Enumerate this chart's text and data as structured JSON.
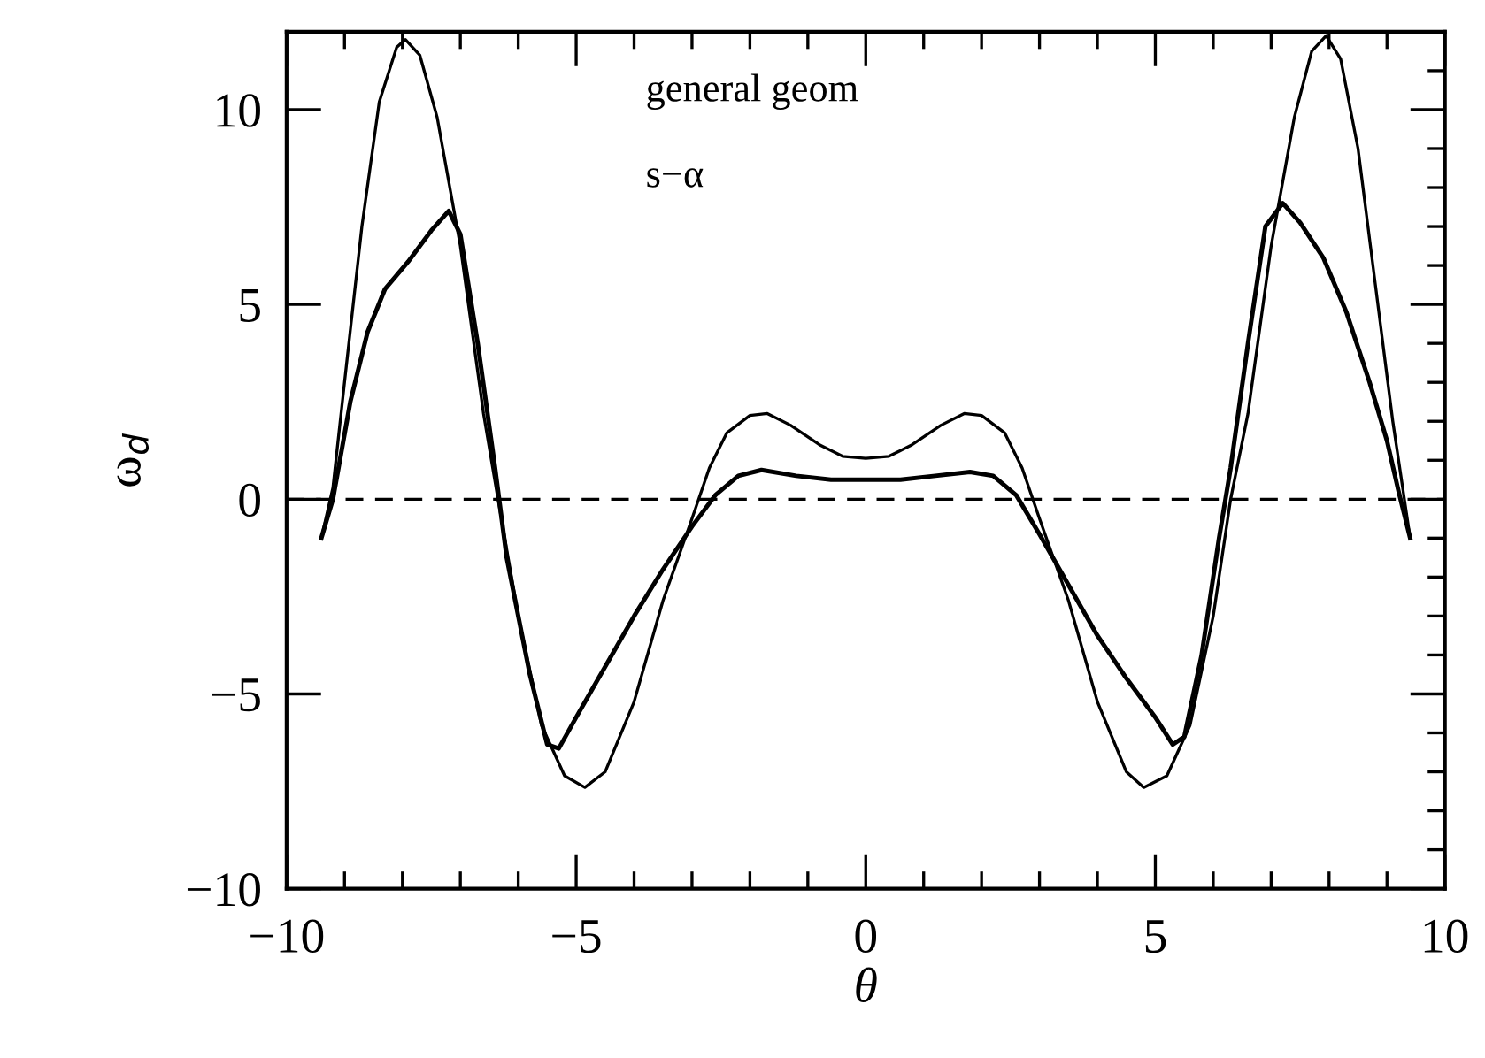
{
  "chart_data": {
    "type": "line",
    "xlabel": "θ",
    "ylabel": "ω$_{d}$",
    "xlim": [
      -10,
      10
    ],
    "ylim": [
      -10,
      12
    ],
    "xticks": [
      {
        "value": -10,
        "label": "−10"
      },
      {
        "value": -5,
        "label": "−5"
      },
      0,
      5,
      10
    ],
    "yticks": [
      {
        "value": -10,
        "label": "−10"
      },
      {
        "value": -5,
        "label": "−5"
      },
      0,
      5,
      10
    ],
    "grid": false,
    "legend": false,
    "marker": "none",
    "line_style": "solid",
    "annotations": [
      "general geom",
      "s−α"
    ],
    "ref_lines": [
      {
        "axis": "y",
        "value": 0,
        "color": "#000000",
        "line_style": "dashed"
      }
    ],
    "series": [
      {
        "color": "#000000",
        "x": [
          -9.4,
          -9.2,
          -9.0,
          -8.7,
          -8.4,
          -8.1,
          -7.95,
          -7.7,
          -7.4,
          -7.0,
          -6.6,
          -6.35,
          -6.0,
          -5.6,
          -5.2,
          -4.85,
          -4.5,
          -4.0,
          -3.5,
          -3.0,
          -2.7,
          -2.4,
          -2.0,
          -1.7,
          -1.3,
          -0.8,
          -0.4,
          0,
          0.4,
          0.8,
          1.3,
          1.7,
          2.0,
          2.4,
          2.7,
          3.0,
          3.5,
          4.0,
          4.5,
          4.8,
          5.2,
          5.6,
          6.0,
          6.3,
          6.6,
          7.0,
          7.4,
          7.7,
          7.95,
          8.2,
          8.5,
          8.8,
          9.1,
          9.4
        ],
        "values": [
          -1,
          0.3,
          3,
          7,
          10.2,
          11.6,
          11.8,
          11.4,
          9.8,
          6.5,
          2.2,
          0,
          -3,
          -5.8,
          -7.1,
          -7.4,
          -7.0,
          -5.2,
          -2.6,
          -0.5,
          0.8,
          1.7,
          2.15,
          2.2,
          1.9,
          1.4,
          1.1,
          1.05,
          1.1,
          1.4,
          1.9,
          2.2,
          2.15,
          1.7,
          0.8,
          -0.5,
          -2.6,
          -5.2,
          -7.0,
          -7.4,
          -7.1,
          -5.8,
          -3,
          0,
          2.2,
          6.5,
          9.8,
          11.5,
          11.9,
          11.3,
          9.0,
          5.5,
          2.0,
          -1
        ]
      },
      {
        "color": "#000000",
        "x": [
          -9.4,
          -9.2,
          -8.9,
          -8.6,
          -8.3,
          -7.9,
          -7.5,
          -7.2,
          -7.0,
          -6.7,
          -6.4,
          -6.2,
          -5.8,
          -5.5,
          -5.3,
          -5.0,
          -4.5,
          -4.0,
          -3.5,
          -3.0,
          -2.6,
          -2.2,
          -1.8,
          -1.2,
          -0.6,
          0,
          0.6,
          1.2,
          1.8,
          2.2,
          2.6,
          3.0,
          3.5,
          4.0,
          4.5,
          5.0,
          5.3,
          5.5,
          5.8,
          6.1,
          6.3,
          6.6,
          6.9,
          7.2,
          7.5,
          7.9,
          8.3,
          8.7,
          9.0,
          9.2,
          9.4
        ],
        "values": [
          -1,
          0,
          2.5,
          4.3,
          5.4,
          6.1,
          6.9,
          7.4,
          6.8,
          4,
          0.8,
          -1.5,
          -4.5,
          -6.3,
          -6.4,
          -5.6,
          -4.3,
          -3.0,
          -1.8,
          -0.7,
          0.1,
          0.6,
          0.75,
          0.6,
          0.5,
          0.5,
          0.5,
          0.6,
          0.7,
          0.6,
          0.1,
          -0.9,
          -2.2,
          -3.5,
          -4.6,
          -5.6,
          -6.3,
          -6.1,
          -4,
          -1,
          0.8,
          4,
          7,
          7.6,
          7.1,
          6.2,
          4.8,
          3.0,
          1.5,
          0.2,
          -1
        ]
      }
    ]
  }
}
